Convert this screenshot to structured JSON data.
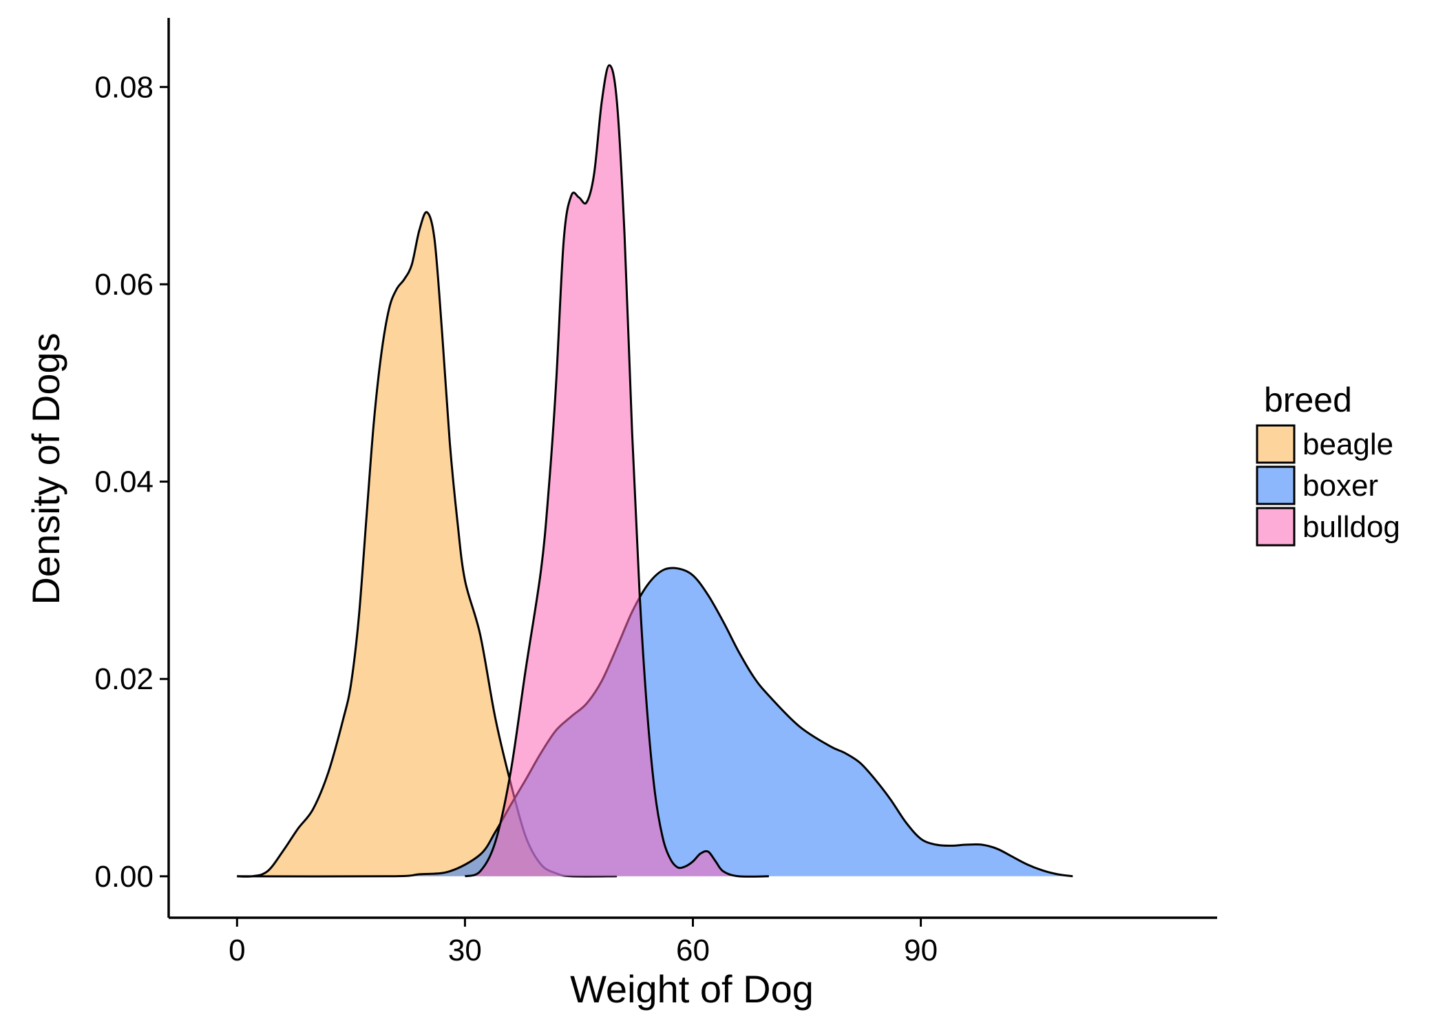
{
  "chart_data": {
    "type": "area",
    "subtype": "density",
    "title": "",
    "xlabel": "Weight of Dog",
    "ylabel": "Density of Dogs",
    "xlim": [
      -9,
      129
    ],
    "ylim": [
      -0.0042,
      0.087
    ],
    "x_ticks": [
      0,
      30,
      60,
      90
    ],
    "x_tick_labels": [
      "0",
      "30",
      "60",
      "90"
    ],
    "y_ticks": [
      0,
      0.02,
      0.04,
      0.06,
      0.08
    ],
    "y_tick_labels": [
      "0.00",
      "0.02",
      "0.04",
      "0.06",
      "0.08"
    ],
    "grid": false,
    "legend": {
      "title": "breed",
      "placement": "right"
    },
    "series": [
      {
        "name": "beagle",
        "color": "#fbb148",
        "points": [
          [
            0,
            0
          ],
          [
            2,
            0
          ],
          [
            4,
            0.0005
          ],
          [
            6,
            0.0025
          ],
          [
            8,
            0.0048
          ],
          [
            10,
            0.0068
          ],
          [
            12,
            0.0105
          ],
          [
            14,
            0.016
          ],
          [
            15,
            0.0195
          ],
          [
            16,
            0.026
          ],
          [
            17,
            0.036
          ],
          [
            18,
            0.046
          ],
          [
            19,
            0.053
          ],
          [
            20,
            0.0575
          ],
          [
            21,
            0.0595
          ],
          [
            22,
            0.0605
          ],
          [
            23,
            0.062
          ],
          [
            24,
            0.0655
          ],
          [
            25,
            0.0673
          ],
          [
            26,
            0.0645
          ],
          [
            27,
            0.055
          ],
          [
            28,
            0.044
          ],
          [
            29,
            0.036
          ],
          [
            30,
            0.03
          ],
          [
            32,
            0.0245
          ],
          [
            34,
            0.016
          ],
          [
            36,
            0.0095
          ],
          [
            38,
            0.004
          ],
          [
            40,
            0.0012
          ],
          [
            42,
            0.0003
          ],
          [
            44,
            0
          ],
          [
            50,
            0
          ]
        ]
      },
      {
        "name": "boxer",
        "color": "#2f7bfb",
        "points": [
          [
            0,
            0
          ],
          [
            20,
            0
          ],
          [
            24,
            0.0002
          ],
          [
            28,
            0.0005
          ],
          [
            32,
            0.0022
          ],
          [
            34,
            0.0045
          ],
          [
            36,
            0.0072
          ],
          [
            38,
            0.0098
          ],
          [
            40,
            0.0125
          ],
          [
            42,
            0.0148
          ],
          [
            44,
            0.0162
          ],
          [
            46,
            0.0175
          ],
          [
            48,
            0.0198
          ],
          [
            50,
            0.0232
          ],
          [
            52,
            0.0268
          ],
          [
            54,
            0.0295
          ],
          [
            56,
            0.031
          ],
          [
            58,
            0.0312
          ],
          [
            60,
            0.0305
          ],
          [
            62,
            0.0285
          ],
          [
            64,
            0.0258
          ],
          [
            66,
            0.0228
          ],
          [
            68,
            0.0202
          ],
          [
            70,
            0.0183
          ],
          [
            74,
            0.0152
          ],
          [
            78,
            0.0132
          ],
          [
            80,
            0.0125
          ],
          [
            82,
            0.0115
          ],
          [
            84,
            0.0098
          ],
          [
            86,
            0.0078
          ],
          [
            88,
            0.0055
          ],
          [
            90,
            0.0038
          ],
          [
            92,
            0.0032
          ],
          [
            94,
            0.0031
          ],
          [
            96,
            0.0032
          ],
          [
            98,
            0.0032
          ],
          [
            100,
            0.0028
          ],
          [
            102,
            0.002
          ],
          [
            104,
            0.0012
          ],
          [
            106,
            0.0006
          ],
          [
            108,
            0.0002
          ],
          [
            110,
            0
          ]
        ]
      },
      {
        "name": "bulldog",
        "color": "#f967b7",
        "points": [
          [
            30,
            0
          ],
          [
            32,
            0.0005
          ],
          [
            34,
            0.0035
          ],
          [
            36,
            0.0105
          ],
          [
            38,
            0.021
          ],
          [
            40,
            0.031
          ],
          [
            41,
            0.039
          ],
          [
            42,
            0.05
          ],
          [
            43,
            0.0645
          ],
          [
            44,
            0.069
          ],
          [
            45,
            0.0688
          ],
          [
            46,
            0.0683
          ],
          [
            47,
            0.0712
          ],
          [
            48,
            0.0785
          ],
          [
            49,
            0.0822
          ],
          [
            50,
            0.0785
          ],
          [
            51,
            0.065
          ],
          [
            52,
            0.045
          ],
          [
            53,
            0.0285
          ],
          [
            54,
            0.0165
          ],
          [
            55,
            0.0085
          ],
          [
            56,
            0.004
          ],
          [
            57,
            0.0018
          ],
          [
            58,
            0.0009
          ],
          [
            59,
            0.001
          ],
          [
            60,
            0.0015
          ],
          [
            61,
            0.0023
          ],
          [
            62,
            0.0025
          ],
          [
            63,
            0.0015
          ],
          [
            64,
            0.0005
          ],
          [
            66,
            0
          ],
          [
            70,
            0
          ]
        ]
      }
    ]
  }
}
